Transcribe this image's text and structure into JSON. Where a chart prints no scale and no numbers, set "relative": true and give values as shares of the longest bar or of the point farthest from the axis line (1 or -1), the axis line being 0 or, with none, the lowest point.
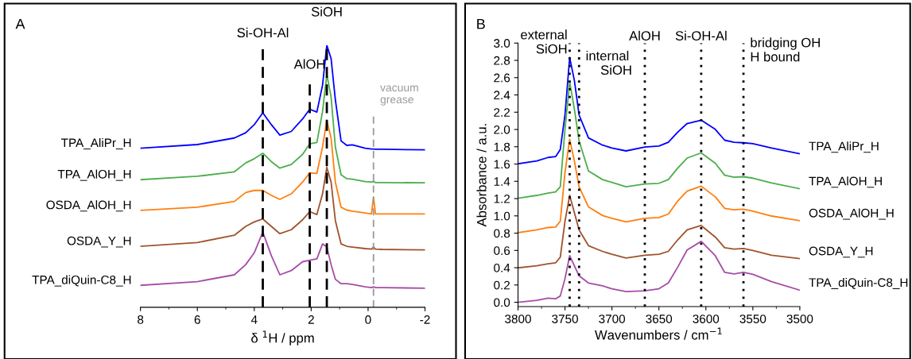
{
  "chart_data": [
    {
      "type": "line",
      "relative": true,
      "annotations": [
        "A"
      ],
      "xlabel": "δ $^{1}$H / ppm",
      "xlim": [
        8,
        -2
      ],
      "xticks": [
        8,
        6,
        4,
        2,
        0,
        -2
      ],
      "tick_labels": "x",
      "legend": false,
      "line_style": "solid",
      "x": [
        8,
        6,
        4.7,
        4.3,
        4,
        3.7,
        3.4,
        3.1,
        2.7,
        2.3,
        2.05,
        1.8,
        1.6,
        1.45,
        1.3,
        1.15,
        0.95,
        0.75,
        0.55,
        0.1,
        -0.12,
        -0.19,
        -0.26,
        -0.5,
        -2
      ],
      "series": [
        {
          "name": "TPA_AliPr_H",
          "color": "#0000ff",
          "values": [
            0.607,
            0.621,
            0.646,
            0.666,
            0.697,
            0.742,
            0.697,
            0.657,
            0.671,
            0.719,
            0.756,
            0.745,
            0.848,
            1.0,
            0.949,
            0.792,
            0.635,
            0.618,
            0.62,
            0.607,
            0.604,
            0.604,
            0.603,
            0.603,
            0.601
          ]
        },
        {
          "name": "TPA_AlOH_H",
          "color": "#4cae4c",
          "values": [
            0.487,
            0.5,
            0.517,
            0.551,
            0.567,
            0.588,
            0.556,
            0.531,
            0.545,
            0.584,
            0.624,
            0.629,
            0.747,
            0.888,
            0.803,
            0.612,
            0.506,
            0.491,
            0.489,
            0.48,
            0.478,
            0.48,
            0.476,
            0.476,
            0.475
          ]
        },
        {
          "name": "OSDA_AlOH_H",
          "color": "#ff7f0e",
          "values": [
            0.37,
            0.382,
            0.404,
            0.438,
            0.446,
            0.446,
            0.427,
            0.412,
            0.433,
            0.478,
            0.513,
            0.511,
            0.612,
            0.713,
            0.646,
            0.478,
            0.382,
            0.371,
            0.367,
            0.36,
            0.356,
            0.421,
            0.356,
            0.356,
            0.356
          ]
        },
        {
          "name": "OSDA_Y_H",
          "color": "#a0522d",
          "values": [
            0.233,
            0.247,
            0.275,
            0.309,
            0.326,
            0.337,
            0.309,
            0.281,
            0.296,
            0.334,
            0.365,
            0.354,
            0.433,
            0.534,
            0.478,
            0.331,
            0.242,
            0.233,
            0.23,
            0.224,
            0.222,
            0.23,
            0.222,
            0.221,
            0.219
          ]
        },
        {
          "name": "TPA_diQuin-C8_H",
          "color": "#a64ca6",
          "values": [
            0.084,
            0.098,
            0.124,
            0.163,
            0.208,
            0.287,
            0.197,
            0.124,
            0.14,
            0.174,
            0.18,
            0.185,
            0.242,
            0.23,
            0.163,
            0.107,
            0.09,
            0.09,
            0.087,
            0.078,
            0.075,
            0.078,
            0.075,
            0.075,
            0.073
          ]
        }
      ],
      "ref_lines": [
        {
          "axis": "x",
          "value": 3.7,
          "label": "Si-OH-Al",
          "color": "#000000",
          "line_style": "dashed"
        },
        {
          "axis": "x",
          "value": 2.05,
          "label": "AlOH",
          "color": "#000000",
          "line_style": "dashed"
        },
        {
          "axis": "x",
          "value": 1.45,
          "label": "SiOH",
          "color": "#000000",
          "line_style": "dashed"
        },
        {
          "axis": "x",
          "value": -0.19,
          "label": "vacuum\ngrease",
          "color": "#999999",
          "line_style": "dashed"
        }
      ]
    },
    {
      "type": "line",
      "annotations": [
        "B"
      ],
      "xlabel": "Wavenumbers / cm$^{−1}$",
      "ylabel": "Absorbance / a.u.",
      "xlim": [
        3800,
        3500
      ],
      "xticks": [
        3800,
        3750,
        3700,
        3650,
        3600,
        3550,
        3500
      ],
      "ylim": [
        -0.05,
        3.0
      ],
      "yticks": [
        {
          "value": 0,
          "label": "0.0"
        },
        {
          "value": 0.2,
          "label": "0.2"
        },
        {
          "value": 0.4,
          "label": "0.4"
        },
        {
          "value": 0.6,
          "label": "0.6"
        },
        {
          "value": 0.8,
          "label": "0.8"
        },
        {
          "value": 1.0,
          "label": "1.0"
        },
        {
          "value": 1.2,
          "label": "1.2"
        },
        {
          "value": 1.4,
          "label": "1.4"
        },
        {
          "value": 1.6,
          "label": "1.6"
        },
        {
          "value": 1.8,
          "label": "1.8"
        },
        {
          "value": 2.0,
          "label": "2.0"
        },
        {
          "value": 2.2,
          "label": "2.2"
        },
        {
          "value": 2.4,
          "label": "2.4"
        },
        {
          "value": 2.6,
          "label": "2.6"
        },
        {
          "value": 2.8,
          "label": "2.8"
        },
        {
          "value": 3.0,
          "label": "3.0"
        }
      ],
      "legend": false,
      "line_style": "solid",
      "x": [
        3800,
        3780,
        3768,
        3760,
        3755,
        3750,
        3745,
        3740,
        3735,
        3725,
        3710,
        3700,
        3685,
        3665,
        3650,
        3640,
        3630,
        3620,
        3605,
        3590,
        3580,
        3570,
        3560,
        3550,
        3530,
        3500
      ],
      "series": [
        {
          "name": "TPA_AliPr_H",
          "color": "#0000ff",
          "values": [
            1.603,
            1.636,
            1.676,
            1.686,
            1.769,
            2.168,
            2.833,
            2.567,
            2.168,
            1.902,
            1.819,
            1.786,
            1.752,
            1.796,
            1.809,
            1.852,
            1.969,
            2.069,
            2.108,
            2.002,
            1.876,
            1.852,
            1.846,
            1.836,
            1.786,
            1.719
          ]
        },
        {
          "name": "TPA_AlOH_H",
          "color": "#4cae4c",
          "values": [
            1.204,
            1.237,
            1.264,
            1.277,
            1.337,
            2.002,
            2.551,
            2.235,
            1.869,
            1.52,
            1.42,
            1.387,
            1.337,
            1.37,
            1.377,
            1.42,
            1.553,
            1.669,
            1.729,
            1.61,
            1.47,
            1.447,
            1.453,
            1.437,
            1.38,
            1.314
          ]
        },
        {
          "name": "OSDA_AlOH_H",
          "color": "#ff7f0e",
          "values": [
            0.805,
            0.838,
            0.865,
            0.871,
            0.938,
            1.503,
            1.886,
            1.636,
            1.337,
            1.104,
            1.004,
            0.971,
            0.931,
            0.971,
            0.981,
            1.021,
            1.171,
            1.287,
            1.344,
            1.22,
            1.087,
            1.071,
            1.077,
            1.054,
            0.998,
            0.944
          ]
        },
        {
          "name": "OSDA_Y_H",
          "color": "#a0522d",
          "values": [
            0.399,
            0.422,
            0.446,
            0.456,
            0.522,
            0.938,
            1.237,
            1.038,
            0.838,
            0.655,
            0.589,
            0.555,
            0.512,
            0.545,
            0.555,
            0.589,
            0.722,
            0.838,
            0.888,
            0.755,
            0.632,
            0.615,
            0.622,
            0.599,
            0.545,
            0.505
          ]
        },
        {
          "name": "TPA_diQuin-C8_H",
          "color": "#a64ca6",
          "values": [
            0.0,
            0.023,
            0.047,
            0.04,
            0.073,
            0.273,
            0.539,
            0.422,
            0.306,
            0.223,
            0.19,
            0.156,
            0.123,
            0.133,
            0.156,
            0.223,
            0.406,
            0.605,
            0.705,
            0.539,
            0.346,
            0.329,
            0.346,
            0.323,
            0.239,
            0.14
          ]
        }
      ],
      "ref_lines": [
        {
          "axis": "x",
          "value": 3745,
          "label": "external\nSiOH",
          "color": "#000000",
          "line_style": "dotted"
        },
        {
          "axis": "x",
          "value": 3735,
          "label": "internal\n    SiOH",
          "color": "#000000",
          "line_style": "dotted"
        },
        {
          "axis": "x",
          "value": 3665,
          "label": "AlOH",
          "color": "#000000",
          "line_style": "dotted"
        },
        {
          "axis": "x",
          "value": 3605,
          "label": "Si-OH-Al",
          "color": "#000000",
          "line_style": "dotted"
        },
        {
          "axis": "x",
          "value": 3560,
          "label": "bridging OH\nH bound",
          "color": "#000000",
          "line_style": "dotted"
        }
      ]
    }
  ]
}
